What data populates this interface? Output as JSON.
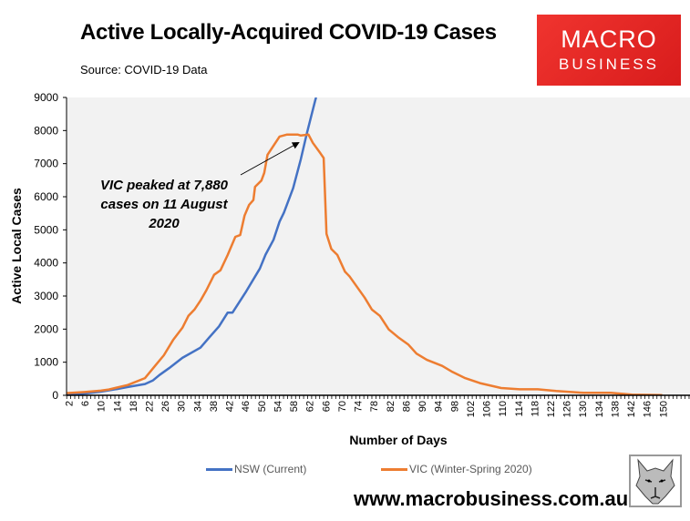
{
  "header": {
    "title": "Active Locally-Acquired COVID-19 Cases",
    "source": "Source: COVID-19 Data",
    "logo_line1": "MACRO",
    "logo_line2": "BUSINESS"
  },
  "footer": {
    "website": "www.macrobusiness.com.au",
    "wolf_logo": "wolf-head-illustration"
  },
  "chart_data": {
    "type": "line",
    "title": "Active Locally-Acquired COVID-19 Cases",
    "xlabel": "Number of Days",
    "ylabel": "Active Local Cases",
    "xlim": [
      1,
      156
    ],
    "ylim": [
      0,
      9000
    ],
    "yticks": [
      0,
      1000,
      2000,
      3000,
      4000,
      5000,
      6000,
      7000,
      8000,
      9000
    ],
    "ytick_labels": [
      "0",
      "1000",
      "2000",
      "3000",
      "4000",
      "5000",
      "6000",
      "7000",
      "8000",
      "9000"
    ],
    "xtick_labels": [
      "2",
      "6",
      "10",
      "14",
      "18",
      "22",
      "26",
      "30",
      "34",
      "38",
      "42",
      "46",
      "50",
      "54",
      "58",
      "62",
      "66",
      "70",
      "74",
      "78",
      "82",
      "86",
      "90",
      "94",
      "98",
      "102",
      "106",
      "110",
      "114",
      "118",
      "122",
      "126",
      "130",
      "134",
      "138",
      "142",
      "146",
      "150"
    ],
    "grid": false,
    "background": "#f2f2f2",
    "legend_position": "bottom",
    "series": [
      {
        "name": "NSW (Current)",
        "color": "#4472c4",
        "points": [
          [
            1,
            10
          ],
          [
            5,
            40
          ],
          [
            10,
            110
          ],
          [
            14,
            190
          ],
          [
            16.7,
            250
          ],
          [
            21,
            340
          ],
          [
            23,
            450
          ],
          [
            24.6,
            615
          ],
          [
            27,
            820
          ],
          [
            30.3,
            1130
          ],
          [
            34.8,
            1440
          ],
          [
            37,
            1750
          ],
          [
            39.4,
            2080
          ],
          [
            41.6,
            2500
          ],
          [
            42.8,
            2500
          ],
          [
            46.2,
            3140
          ],
          [
            49.6,
            3830
          ],
          [
            51,
            4250
          ],
          [
            53,
            4700
          ],
          [
            54.5,
            5250
          ],
          [
            55.6,
            5520
          ],
          [
            57.9,
            6260
          ],
          [
            59.8,
            7130
          ],
          [
            61.3,
            7910
          ],
          [
            63.4,
            8920
          ],
          [
            63.6,
            9000
          ]
        ]
      },
      {
        "name": "VIC (Winter-Spring 2020)",
        "color": "#ed7d31",
        "points": [
          [
            1,
            60
          ],
          [
            6,
            100
          ],
          [
            10,
            140
          ],
          [
            12,
            175
          ],
          [
            16.7,
            310
          ],
          [
            21,
            520
          ],
          [
            23.5,
            890
          ],
          [
            25.7,
            1210
          ],
          [
            28,
            1670
          ],
          [
            30.3,
            2040
          ],
          [
            31.8,
            2400
          ],
          [
            33.3,
            2590
          ],
          [
            34.8,
            2860
          ],
          [
            36.3,
            3180
          ],
          [
            38.2,
            3640
          ],
          [
            39.8,
            3780
          ],
          [
            41.6,
            4240
          ],
          [
            43.5,
            4790
          ],
          [
            44.7,
            4840
          ],
          [
            45.8,
            5430
          ],
          [
            46.9,
            5750
          ],
          [
            48,
            5900
          ],
          [
            48.4,
            6300
          ],
          [
            50,
            6490
          ],
          [
            50.7,
            6720
          ],
          [
            51.5,
            7270
          ],
          [
            54.5,
            7820
          ],
          [
            56.4,
            7880
          ],
          [
            59,
            7880
          ],
          [
            59.8,
            7850
          ],
          [
            61.7,
            7880
          ],
          [
            62.8,
            7630
          ],
          [
            64.7,
            7310
          ],
          [
            65.5,
            7170
          ],
          [
            66.2,
            4880
          ],
          [
            67.4,
            4420
          ],
          [
            68.9,
            4240
          ],
          [
            70.8,
            3735
          ],
          [
            71.9,
            3600
          ],
          [
            75.7,
            2950
          ],
          [
            77.5,
            2590
          ],
          [
            79.5,
            2400
          ],
          [
            81.7,
            1990
          ],
          [
            84,
            1760
          ],
          [
            86.6,
            1530
          ],
          [
            88.6,
            1260
          ],
          [
            91.2,
            1070
          ],
          [
            95,
            890
          ],
          [
            97.6,
            705
          ],
          [
            100.7,
            520
          ],
          [
            104.4,
            370
          ],
          [
            109.7,
            220
          ],
          [
            114.3,
            183
          ],
          [
            118.8,
            183
          ],
          [
            123.4,
            128
          ],
          [
            130.2,
            73
          ],
          [
            137,
            73
          ],
          [
            142.3,
            18
          ],
          [
            149.8,
            5
          ]
        ]
      }
    ],
    "annotations": [
      {
        "text_lines": [
          "VIC peaked at 7,880",
          "cases on 11 August",
          "2020"
        ],
        "arrow_to": [
          61,
          7880
        ]
      }
    ]
  }
}
